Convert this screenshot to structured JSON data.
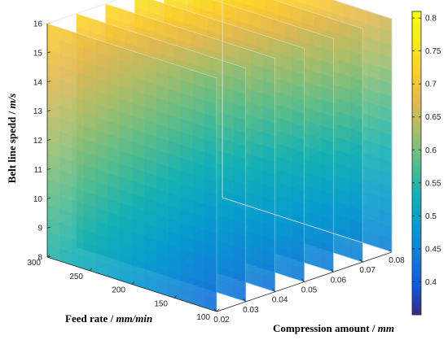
{
  "chart_data": {
    "type": "slice",
    "xlabel": "Compression amount / mm",
    "ylabel": "Feed rate / mm/min",
    "zlabel": "Belt line spedd / m/s",
    "x_ticks": [
      "0.02",
      "0.03",
      "0.04",
      "0.05",
      "0.06",
      "0.07",
      "0.08"
    ],
    "y_ticks": [
      "100",
      "150",
      "200",
      "250",
      "300"
    ],
    "z_ticks": [
      "8",
      "9",
      "10",
      "11",
      "12",
      "13",
      "14",
      "15",
      "16"
    ],
    "xlim": [
      0.02,
      0.08
    ],
    "ylim": [
      100,
      300
    ],
    "zlim": [
      8,
      16
    ],
    "slice_x_positions": [
      0.02,
      0.03,
      0.04,
      0.05,
      0.06,
      0.07,
      0.08
    ],
    "colorbar": {
      "colormap": "parula",
      "range": [
        0.35,
        0.81
      ],
      "ticks": [
        "0.4",
        "0.45",
        "0.5",
        "0.55",
        "0.6",
        "0.65",
        "0.7",
        "0.75",
        "0.8"
      ]
    },
    "value_model": {
      "description_free": true,
      "corner_values": {
        "x0.02_y300_z16": 0.72,
        "x0.08_y300_z16": 0.79,
        "x0.02_y100_z16": 0.6,
        "x0.08_y100_z16": 0.66,
        "x0.02_y300_z8": 0.55,
        "x0.08_y300_z8": 0.52,
        "x0.02_y100_z8": 0.42,
        "x0.08_y100_z8": 0.45
      }
    }
  },
  "labels": {
    "xlabel_text": "Compression amount / ",
    "xlabel_unit": "mm",
    "ylabel_text": "Feed rate / ",
    "ylabel_unit": "mm/min",
    "zlabel_text": "Belt line spedd / ",
    "zlabel_unit": "m/s"
  }
}
